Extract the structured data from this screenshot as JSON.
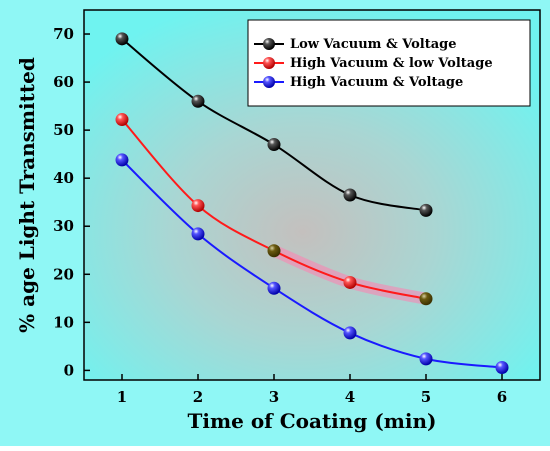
{
  "chart_data": {
    "type": "line",
    "title": "",
    "xlabel": "Time of Coating (min)",
    "ylabel": "% age Light Transmitted",
    "xlim": [
      0.5,
      6.5
    ],
    "ylim": [
      -2,
      75
    ],
    "xticks": [
      1,
      2,
      3,
      4,
      5,
      6
    ],
    "yticks": [
      0,
      10,
      20,
      30,
      40,
      50,
      60,
      70
    ],
    "grid": false,
    "legend_position": "top-right",
    "colors": {
      "background_center": "#c9c7c6",
      "background_edge": "#6ff3f0",
      "outer_background": "#8ff7f5"
    },
    "series": [
      {
        "name": "Low Vacuum & Voltage",
        "color": "#000000",
        "x": [
          1,
          2,
          3,
          4,
          5
        ],
        "y": [
          69,
          56,
          47,
          36.5,
          33.3
        ]
      },
      {
        "name": "High Vacuum & low Voltage",
        "color": "#ff1a1a",
        "x": [
          1,
          2,
          3,
          4,
          5
        ],
        "y": [
          52.2,
          34.3,
          24.9,
          18.3,
          14.9
        ]
      },
      {
        "name": "High Vacuum & Voltage",
        "color": "#1a1aff",
        "x": [
          1,
          2,
          3,
          4,
          5,
          6
        ],
        "y": [
          43.8,
          28.4,
          17.1,
          7.8,
          2.4,
          0.6
        ]
      }
    ]
  }
}
